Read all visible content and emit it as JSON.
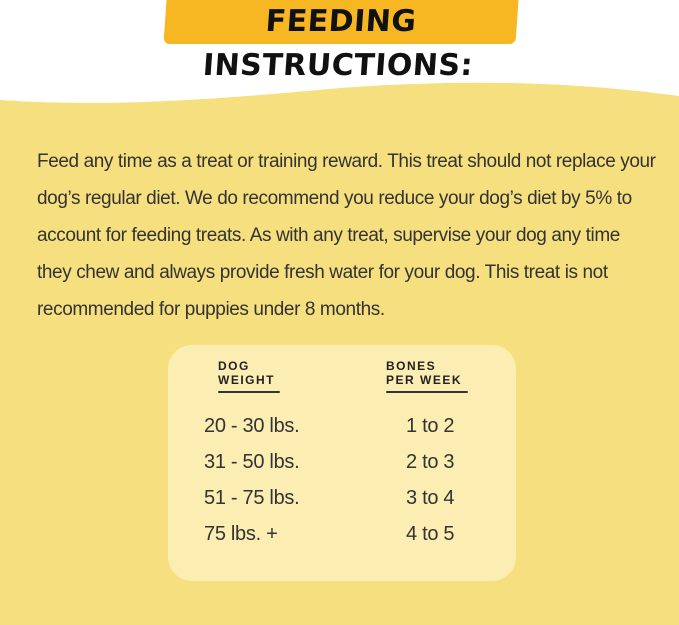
{
  "header": {
    "title": "FEEDING INSTRUCTIONS:"
  },
  "body": {
    "lines": [
      "Feed any time as a treat or training reward. This treat should not replace your",
      "dog’s regular diet. We do recommend you reduce your dog’s diet by 5% to",
      "account for feeding treats. As with any treat, supervise your dog any time",
      "they chew and always provide fresh water for your dog. This treat is not",
      "recommended for puppies under 8 months."
    ]
  },
  "table": {
    "columns": [
      [
        "DOG",
        "WEIGHT"
      ],
      [
        "BONES",
        "PER WEEK"
      ]
    ],
    "rows": [
      [
        "20 - 30 lbs.",
        "1 to 2"
      ],
      [
        "31 - 50 lbs.",
        "2 to 3"
      ],
      [
        "51 - 75 lbs.",
        "3 to 4"
      ],
      [
        "75 lbs. +",
        "4 to 5"
      ]
    ]
  }
}
